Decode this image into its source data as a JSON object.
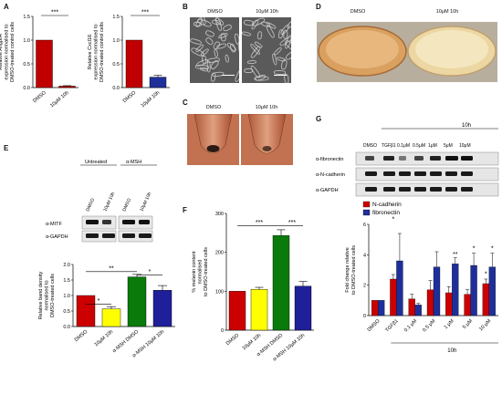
{
  "labels": {
    "A": "A",
    "B": "B",
    "C": "C",
    "D": "D",
    "E": "E",
    "F": "F",
    "G": "G"
  },
  "conditions": {
    "dmso": "DMSO",
    "treated": "10μM 10h"
  },
  "panelA": {
    "left": {
      "ylabel_lines": [
        "Relative Angptl4",
        "expression normalised to",
        "DMSO-treated control cells"
      ],
      "sig": "***",
      "ticks": [
        "0.0",
        "0.5",
        "1.0",
        "1.5"
      ],
      "categories": [
        "DMSO",
        "10μM 10h"
      ]
    },
    "right": {
      "ylabel_lines": [
        "Relative Cxcl1ß",
        "expression normalised to",
        "DMSO-treated control cells"
      ],
      "sig": "***",
      "ticks": [
        "0.0",
        "0.5",
        "1.0",
        "1.5"
      ],
      "categories": [
        "DMSO",
        "10μM 10h"
      ]
    }
  },
  "panelE": {
    "group_untreated": "Untreated",
    "group_msh": "α-MSH",
    "blot_cols": [
      "DMSO",
      "10μM 10h",
      "DMSO",
      "10μM 10h"
    ],
    "blot_rows": [
      "α-MITF",
      "α-GAPDH"
    ],
    "ylabel_lines": [
      "Relative band density",
      "normalised to",
      "DMSO-treated cells"
    ],
    "ticks": [
      "0.0",
      "0.5",
      "1.0",
      "1.5",
      "2.0"
    ],
    "categories": [
      "DMSO",
      "10μM 10h",
      "α-MSH DMSO",
      "α-MSH 10μM 10h"
    ],
    "sig": [
      "*",
      "**",
      "*"
    ]
  },
  "panelF": {
    "ylabel_lines": [
      "% melanin content",
      "normalised",
      "to DMSO-treated cells"
    ],
    "ticks": [
      "0",
      "100",
      "200",
      "300"
    ],
    "categories": [
      "DMSO",
      "10μM 10h",
      "α-MSH DMSO",
      "α-MSH 10μM 10h"
    ],
    "sig": [
      "***",
      "***"
    ]
  },
  "panelG": {
    "header": "10h",
    "blot_cols": [
      "DMSO",
      "TGFβ1",
      "0.1μM",
      "0.5μM",
      "1μM",
      "5μM",
      "10μM"
    ],
    "blot_rows": [
      "α-fibronectin",
      "α-N-cadherin",
      "α-GAPDH"
    ],
    "legend": [
      "N-cadherin",
      "fibronectin"
    ],
    "ylabel_lines": [
      "Fold change relative",
      "to DMSO-treated cells"
    ],
    "ticks": [
      "0",
      "2",
      "4",
      "6"
    ],
    "categories": [
      "DMSO",
      "TGFβ1",
      "0.1 μM",
      "0.5 μM",
      "1 μM",
      "5 μM",
      "10 μM"
    ],
    "sig": [
      "*",
      "**",
      "*",
      "*",
      "*"
    ],
    "xgroup": "10h"
  },
  "chart_data": [
    {
      "panel": "A-left",
      "type": "bar",
      "categories": [
        "DMSO",
        "10μM 10h"
      ],
      "values": [
        1.0,
        0.03
      ],
      "errors": [
        0,
        0.01
      ],
      "ylim": [
        0,
        1.5
      ],
      "color": "#c00000",
      "ylabel": "Relative Angptl4 expression normalised to DMSO-treated control cells"
    },
    {
      "panel": "A-right",
      "type": "bar",
      "categories": [
        "DMSO",
        "10μM 10h"
      ],
      "values": [
        1.0,
        0.22
      ],
      "errors": [
        0,
        0.04
      ],
      "ylim": [
        0,
        1.5
      ],
      "colors": [
        "#c00000",
        "#1f2f9a"
      ],
      "ylabel": "Relative Cxcl1ß expression normalised to DMSO-treated control cells"
    },
    {
      "panel": "E",
      "type": "bar",
      "categories": [
        "DMSO",
        "10μM 10h",
        "α-MSH DMSO",
        "α-MSH 10μM 10h"
      ],
      "values": [
        1.0,
        0.57,
        1.6,
        1.17
      ],
      "errors": [
        0,
        0.07,
        0.08,
        0.15
      ],
      "ylim": [
        0,
        2.0
      ],
      "colors": [
        "#cc0000",
        "#ffff00",
        "#0a7a0a",
        "#1f1f9a"
      ],
      "ylabel": "Relative band density normalised to DMSO-treated cells"
    },
    {
      "panel": "F",
      "type": "bar",
      "categories": [
        "DMSO",
        "10μM 10h",
        "α-MSH DMSO",
        "α-MSH 10μM 10h"
      ],
      "values": [
        100,
        105,
        243,
        113
      ],
      "errors": [
        0,
        5,
        15,
        12
      ],
      "ylim": [
        0,
        300
      ],
      "colors": [
        "#cc0000",
        "#ffff00",
        "#0a7a0a",
        "#1f1f9a"
      ],
      "ylabel": "% melanin content normalised to DMSO-treated cells"
    },
    {
      "panel": "G",
      "type": "bar",
      "categories": [
        "DMSO",
        "TGFβ1",
        "0.1 μM",
        "0.5 μM",
        "1 μM",
        "5 μM",
        "10 μM"
      ],
      "series": [
        {
          "name": "N-cadherin",
          "color": "#cc0000",
          "values": [
            1.0,
            2.4,
            1.1,
            1.7,
            1.5,
            1.4,
            2.1
          ],
          "errors": [
            0,
            0.3,
            0.3,
            0.6,
            0.4,
            0.3,
            0.3
          ]
        },
        {
          "name": "fibronectin",
          "color": "#1f2f9a",
          "values": [
            1.0,
            3.6,
            0.7,
            3.2,
            3.4,
            3.3,
            3.2
          ],
          "errors": [
            0,
            1.8,
            0.1,
            1.0,
            0.4,
            0.8,
            0.9
          ]
        }
      ],
      "ylim": [
        0,
        6
      ],
      "ylabel": "Fold change relative to DMSO-treated cells",
      "legend": "top-left"
    }
  ]
}
